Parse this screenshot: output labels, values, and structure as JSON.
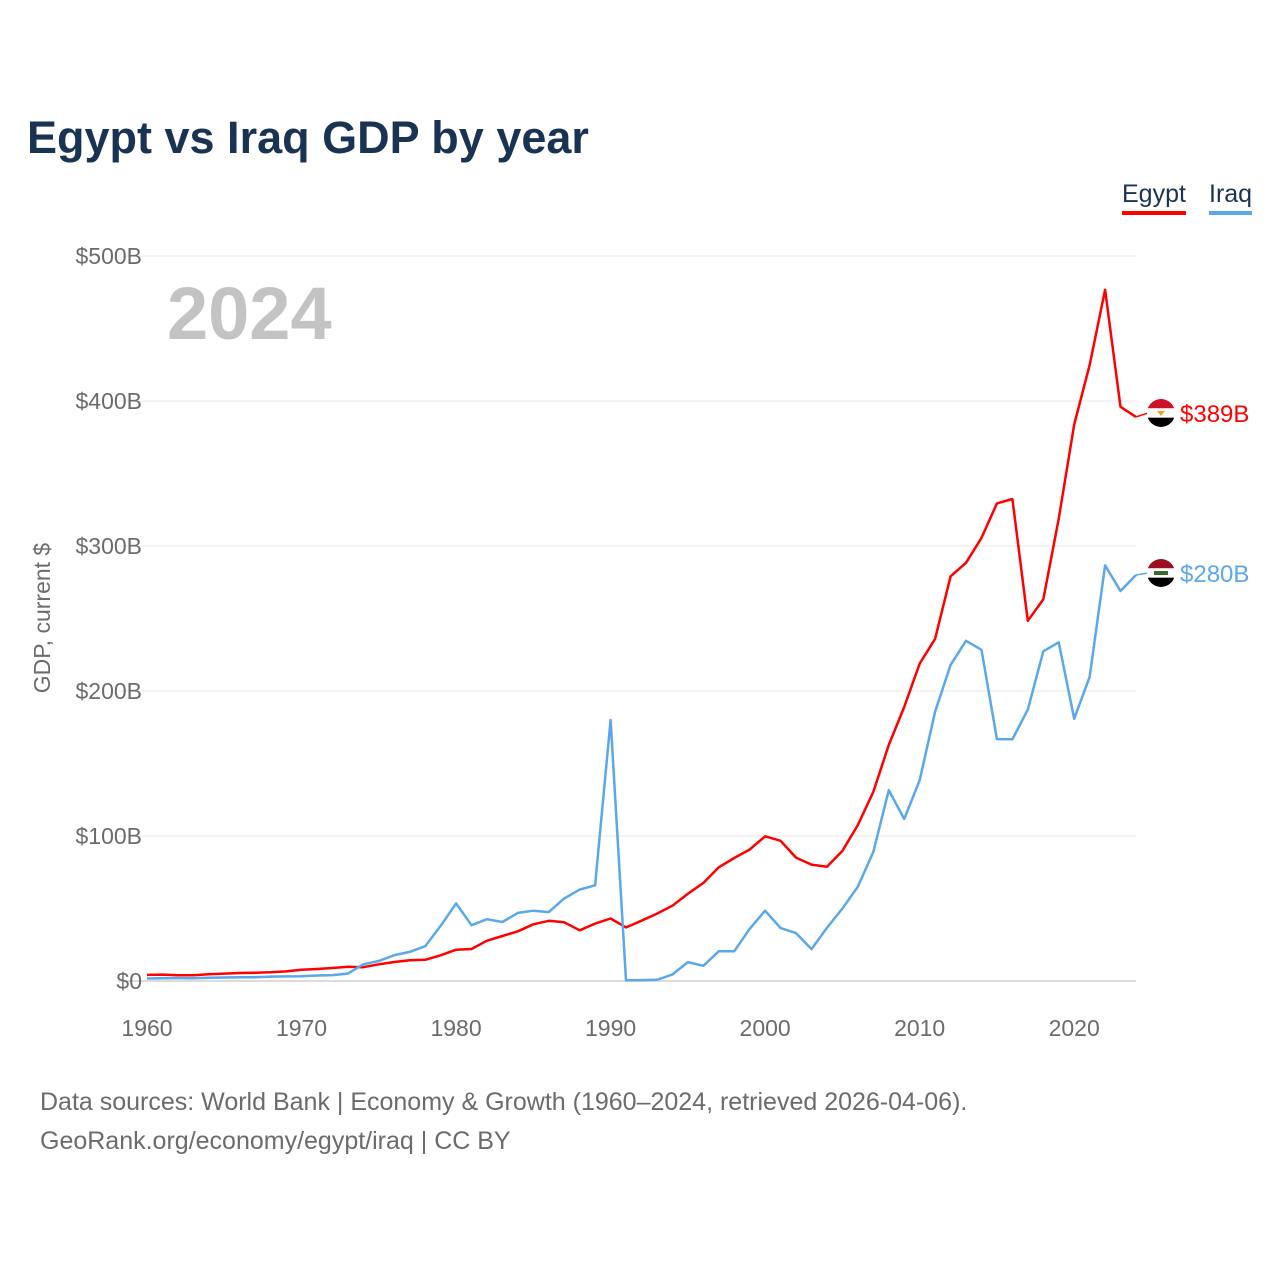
{
  "title": "Egypt vs Iraq GDP by year",
  "footer": {
    "line1": "Data sources: World Bank | Economy & Growth (1960–2024, retrieved 2026-04-06).",
    "line2": "GeoRank.org/economy/egypt/iraq | CC BY"
  },
  "chart_data": {
    "type": "line",
    "title": "Egypt vs Iraq GDP by year",
    "xlabel": "",
    "ylabel": "GDP, current $",
    "current_year_label": "2024",
    "xlim": [
      1960,
      2024
    ],
    "ylim": [
      0,
      500
    ],
    "x_ticks": [
      "1960",
      "1970",
      "1980",
      "1990",
      "2000",
      "2010",
      "2020"
    ],
    "y_ticks": [
      {
        "value": 0,
        "label": "$0"
      },
      {
        "value": 100,
        "label": "$100B"
      },
      {
        "value": 200,
        "label": "$200B"
      },
      {
        "value": 300,
        "label": "$300B"
      },
      {
        "value": 400,
        "label": "$400B"
      },
      {
        "value": 500,
        "label": "$500B"
      }
    ],
    "grid": true,
    "legend_position": "top-right",
    "start_year": 1960,
    "series": [
      {
        "name": "Egypt",
        "color": "#ff0000",
        "end_label": "$389B",
        "flag": "egypt-flag",
        "values": [
          4.2,
          4.4,
          4.0,
          4.0,
          4.6,
          5.1,
          5.5,
          5.7,
          6.0,
          6.6,
          7.7,
          8.3,
          9.0,
          9.8,
          9.5,
          11.5,
          13.1,
          14.3,
          14.6,
          17.7,
          21.6,
          22.1,
          27.8,
          31.0,
          34.3,
          39.1,
          41.5,
          40.5,
          35.0,
          39.6,
          43.1,
          37.0,
          41.6,
          46.5,
          51.9,
          60.2,
          67.6,
          78.4,
          84.8,
          90.7,
          99.8,
          96.7,
          85.1,
          80.3,
          78.8,
          89.7,
          107.5,
          130.4,
          162.8,
          189.0,
          218.9,
          236.0,
          279.1,
          288.4,
          305.6,
          329.4,
          332.4,
          248.4,
          263.2,
          318.7,
          383.8,
          424.7,
          476.7,
          396.0,
          389.0
        ]
      },
      {
        "name": "Iraq",
        "color": "#5aa7ea",
        "end_label": "$280B",
        "flag": "iraq-flag",
        "values": [
          1.7,
          1.9,
          2.0,
          1.9,
          2.2,
          2.4,
          2.6,
          2.6,
          3.0,
          3.2,
          3.3,
          3.8,
          4.1,
          5.1,
          11.5,
          13.8,
          17.8,
          20.1,
          24.0,
          38.0,
          53.5,
          38.5,
          42.6,
          40.7,
          47.0,
          48.5,
          47.5,
          57.0,
          63.0,
          66.0,
          180.0,
          0.5,
          0.6,
          0.8,
          4.5,
          13.0,
          10.5,
          20.5,
          20.5,
          36.0,
          48.5,
          36.5,
          33.0,
          22.0,
          36.6,
          50.0,
          65.0,
          89.0,
          131.6,
          111.7,
          138.5,
          185.7,
          218.0,
          234.6,
          228.4,
          166.8,
          166.7,
          187.2,
          227.4,
          233.6,
          180.9,
          209.6,
          286.6,
          269.0,
          280.0
        ]
      }
    ]
  }
}
